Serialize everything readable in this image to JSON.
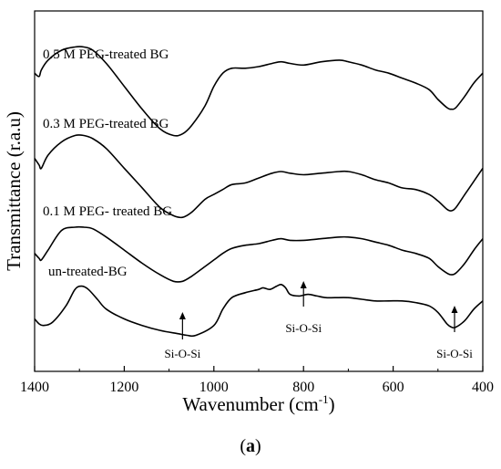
{
  "panel_label": "a",
  "chart_data": {
    "type": "line",
    "xlabel": "Wavenumber",
    "xlabel_unit": "cm",
    "xlabel_unit_exponent": "-1",
    "ylabel": "Transmittance (r.a.u)",
    "xlim": [
      1400,
      400
    ],
    "x_reversed": true,
    "xticks": [
      1400,
      1200,
      1000,
      800,
      600,
      400
    ],
    "yticks_shown": false,
    "grid": false,
    "legend": "none",
    "series_labels": [
      "0.5 M PEG-treated BG",
      "0.3 M PEG-treated BG",
      "0.1 M PEG- treated BG",
      "un-treated-BG"
    ],
    "series": [
      {
        "name": "0.5 M PEG-treated BG",
        "x": [
          1400,
          1390,
          1385,
          1370,
          1340,
          1310,
          1290,
          1270,
          1240,
          1200,
          1160,
          1120,
          1090,
          1070,
          1050,
          1020,
          1000,
          980,
          960,
          930,
          900,
          870,
          850,
          830,
          800,
          760,
          720,
          700,
          670,
          640,
          610,
          580,
          550,
          520,
          500,
          480,
          470,
          460,
          440,
          420,
          400
        ],
        "y": [
          9.1,
          9.0,
          9.2,
          9.5,
          9.8,
          9.9,
          9.9,
          9.8,
          9.4,
          8.7,
          8.0,
          7.4,
          7.2,
          7.25,
          7.5,
          8.1,
          8.7,
          9.1,
          9.25,
          9.25,
          9.3,
          9.4,
          9.45,
          9.4,
          9.35,
          9.45,
          9.5,
          9.45,
          9.35,
          9.2,
          9.1,
          8.95,
          8.8,
          8.6,
          8.3,
          8.05,
          8.0,
          8.05,
          8.4,
          8.8,
          9.1
        ]
      },
      {
        "name": "0.3 M PEG-treated BG",
        "x": [
          1400,
          1390,
          1385,
          1370,
          1340,
          1310,
          1290,
          1270,
          1240,
          1200,
          1160,
          1120,
          1090,
          1070,
          1050,
          1020,
          1000,
          980,
          960,
          930,
          900,
          870,
          850,
          830,
          800,
          760,
          720,
          700,
          670,
          640,
          610,
          580,
          550,
          520,
          500,
          480,
          470,
          460,
          440,
          420,
          400
        ],
        "y": [
          6.5,
          6.3,
          6.2,
          6.6,
          7.0,
          7.2,
          7.2,
          7.1,
          6.8,
          6.2,
          5.6,
          5.0,
          4.75,
          4.7,
          4.85,
          5.25,
          5.4,
          5.55,
          5.7,
          5.75,
          5.9,
          6.05,
          6.1,
          6.05,
          6.0,
          6.05,
          6.1,
          6.1,
          6.0,
          5.85,
          5.75,
          5.6,
          5.55,
          5.4,
          5.2,
          4.95,
          4.9,
          5.0,
          5.4,
          5.8,
          6.2
        ]
      },
      {
        "name": "0.1 M PEG- treated BG",
        "x": [
          1400,
          1390,
          1385,
          1370,
          1340,
          1310,
          1290,
          1270,
          1240,
          1200,
          1160,
          1120,
          1090,
          1070,
          1050,
          1020,
          1000,
          980,
          960,
          930,
          900,
          870,
          850,
          830,
          800,
          760,
          720,
          700,
          670,
          640,
          610,
          580,
          550,
          520,
          500,
          480,
          470,
          460,
          440,
          420,
          400
        ],
        "y": [
          3.6,
          3.45,
          3.4,
          3.7,
          4.3,
          4.4,
          4.4,
          4.35,
          4.1,
          3.7,
          3.3,
          2.95,
          2.75,
          2.75,
          2.9,
          3.2,
          3.4,
          3.6,
          3.75,
          3.85,
          3.9,
          4.0,
          4.05,
          4.0,
          4.0,
          4.05,
          4.1,
          4.1,
          4.05,
          3.95,
          3.85,
          3.7,
          3.6,
          3.45,
          3.2,
          3.0,
          2.95,
          3.0,
          3.3,
          3.7,
          4.05
        ]
      },
      {
        "name": "un-treated-BG",
        "x": [
          1400,
          1390,
          1380,
          1360,
          1330,
          1310,
          1295,
          1280,
          1260,
          1240,
          1200,
          1160,
          1120,
          1080,
          1060,
          1040,
          1000,
          980,
          960,
          930,
          900,
          890,
          875,
          860,
          850,
          840,
          830,
          810,
          790,
          770,
          750,
          730,
          700,
          670,
          640,
          610,
          580,
          550,
          520,
          500,
          480,
          470,
          460,
          440,
          420,
          400
        ],
        "y": [
          1.6,
          1.45,
          1.4,
          1.5,
          2.0,
          2.5,
          2.6,
          2.5,
          2.2,
          1.9,
          1.6,
          1.4,
          1.25,
          1.15,
          1.1,
          1.1,
          1.4,
          1.9,
          2.25,
          2.4,
          2.5,
          2.55,
          2.5,
          2.6,
          2.65,
          2.55,
          2.35,
          2.3,
          2.35,
          2.3,
          2.25,
          2.25,
          2.25,
          2.2,
          2.15,
          2.15,
          2.15,
          2.1,
          2.0,
          1.8,
          1.45,
          1.35,
          1.35,
          1.55,
          1.9,
          2.15
        ]
      }
    ],
    "annotations": [
      {
        "text": "Si-O-Si",
        "x": 1070,
        "arrow": true
      },
      {
        "text": "Si-O-Si",
        "x": 800,
        "arrow": true
      },
      {
        "text": "Si-O-Si",
        "x": 463,
        "arrow": true
      }
    ]
  }
}
